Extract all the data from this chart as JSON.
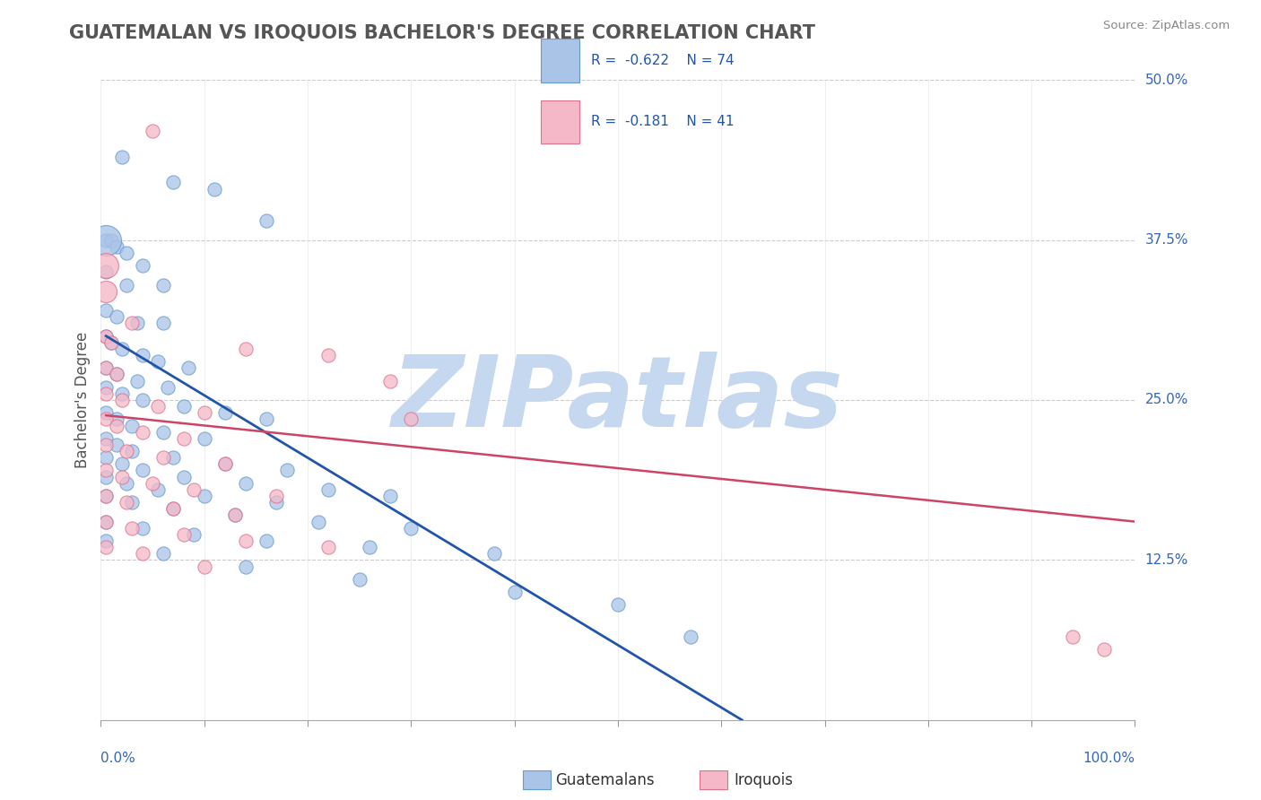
{
  "title": "GUATEMALAN VS IROQUOIS BACHELOR'S DEGREE CORRELATION CHART",
  "source_text": "Source: ZipAtlas.com",
  "ylabel": "Bachelor's Degree",
  "xlim": [
    0.0,
    1.0
  ],
  "ylim": [
    0.0,
    0.5
  ],
  "yticks": [
    0.0,
    0.125,
    0.25,
    0.375,
    0.5
  ],
  "ytick_labels": [
    "",
    "12.5%",
    "25.0%",
    "37.5%",
    "50.0%"
  ],
  "xticks": [
    0.0,
    0.1,
    0.2,
    0.3,
    0.4,
    0.5,
    0.6,
    0.7,
    0.8,
    0.9,
    1.0
  ],
  "blue_color": "#aac4e8",
  "pink_color": "#f5b8c8",
  "blue_edge_color": "#6699cc",
  "pink_edge_color": "#e0708a",
  "blue_line_color": "#2255aa",
  "pink_line_color": "#cc4466",
  "legend_R_blue": " -0.622",
  "legend_N_blue": "74",
  "legend_R_pink": " -0.181",
  "legend_N_pink": "41",
  "watermark": "ZIPatlas",
  "watermark_color": "#c5d8ef",
  "background_color": "#ffffff",
  "grid_color": "#cccccc",
  "title_color": "#555555",
  "axis_label_color": "#3366bb",
  "blue_line_x": [
    0.005,
    0.62
  ],
  "blue_line_y": [
    0.3,
    0.0
  ],
  "pink_line_x": [
    0.005,
    1.0
  ],
  "pink_line_y": [
    0.238,
    0.155
  ],
  "blue_points": [
    [
      0.02,
      0.44
    ],
    [
      0.07,
      0.42
    ],
    [
      0.11,
      0.415
    ],
    [
      0.16,
      0.39
    ],
    [
      0.005,
      0.375
    ],
    [
      0.01,
      0.375
    ],
    [
      0.015,
      0.37
    ],
    [
      0.025,
      0.365
    ],
    [
      0.04,
      0.355
    ],
    [
      0.005,
      0.35
    ],
    [
      0.025,
      0.34
    ],
    [
      0.06,
      0.34
    ],
    [
      0.005,
      0.32
    ],
    [
      0.015,
      0.315
    ],
    [
      0.035,
      0.31
    ],
    [
      0.06,
      0.31
    ],
    [
      0.005,
      0.3
    ],
    [
      0.01,
      0.295
    ],
    [
      0.02,
      0.29
    ],
    [
      0.04,
      0.285
    ],
    [
      0.055,
      0.28
    ],
    [
      0.085,
      0.275
    ],
    [
      0.005,
      0.275
    ],
    [
      0.015,
      0.27
    ],
    [
      0.035,
      0.265
    ],
    [
      0.065,
      0.26
    ],
    [
      0.005,
      0.26
    ],
    [
      0.02,
      0.255
    ],
    [
      0.04,
      0.25
    ],
    [
      0.08,
      0.245
    ],
    [
      0.12,
      0.24
    ],
    [
      0.16,
      0.235
    ],
    [
      0.005,
      0.24
    ],
    [
      0.015,
      0.235
    ],
    [
      0.03,
      0.23
    ],
    [
      0.06,
      0.225
    ],
    [
      0.1,
      0.22
    ],
    [
      0.005,
      0.22
    ],
    [
      0.015,
      0.215
    ],
    [
      0.03,
      0.21
    ],
    [
      0.07,
      0.205
    ],
    [
      0.12,
      0.2
    ],
    [
      0.18,
      0.195
    ],
    [
      0.005,
      0.205
    ],
    [
      0.02,
      0.2
    ],
    [
      0.04,
      0.195
    ],
    [
      0.08,
      0.19
    ],
    [
      0.14,
      0.185
    ],
    [
      0.22,
      0.18
    ],
    [
      0.28,
      0.175
    ],
    [
      0.005,
      0.19
    ],
    [
      0.025,
      0.185
    ],
    [
      0.055,
      0.18
    ],
    [
      0.1,
      0.175
    ],
    [
      0.17,
      0.17
    ],
    [
      0.005,
      0.175
    ],
    [
      0.03,
      0.17
    ],
    [
      0.07,
      0.165
    ],
    [
      0.13,
      0.16
    ],
    [
      0.21,
      0.155
    ],
    [
      0.3,
      0.15
    ],
    [
      0.005,
      0.155
    ],
    [
      0.04,
      0.15
    ],
    [
      0.09,
      0.145
    ],
    [
      0.16,
      0.14
    ],
    [
      0.26,
      0.135
    ],
    [
      0.38,
      0.13
    ],
    [
      0.005,
      0.14
    ],
    [
      0.06,
      0.13
    ],
    [
      0.14,
      0.12
    ],
    [
      0.25,
      0.11
    ],
    [
      0.4,
      0.1
    ],
    [
      0.5,
      0.09
    ],
    [
      0.57,
      0.065
    ]
  ],
  "pink_points": [
    [
      0.05,
      0.46
    ],
    [
      0.03,
      0.31
    ],
    [
      0.005,
      0.3
    ],
    [
      0.01,
      0.295
    ],
    [
      0.14,
      0.29
    ],
    [
      0.22,
      0.285
    ],
    [
      0.005,
      0.275
    ],
    [
      0.015,
      0.27
    ],
    [
      0.28,
      0.265
    ],
    [
      0.005,
      0.255
    ],
    [
      0.02,
      0.25
    ],
    [
      0.055,
      0.245
    ],
    [
      0.1,
      0.24
    ],
    [
      0.3,
      0.235
    ],
    [
      0.005,
      0.235
    ],
    [
      0.015,
      0.23
    ],
    [
      0.04,
      0.225
    ],
    [
      0.08,
      0.22
    ],
    [
      0.005,
      0.215
    ],
    [
      0.025,
      0.21
    ],
    [
      0.06,
      0.205
    ],
    [
      0.12,
      0.2
    ],
    [
      0.005,
      0.195
    ],
    [
      0.02,
      0.19
    ],
    [
      0.05,
      0.185
    ],
    [
      0.09,
      0.18
    ],
    [
      0.17,
      0.175
    ],
    [
      0.005,
      0.175
    ],
    [
      0.025,
      0.17
    ],
    [
      0.07,
      0.165
    ],
    [
      0.13,
      0.16
    ],
    [
      0.005,
      0.155
    ],
    [
      0.03,
      0.15
    ],
    [
      0.08,
      0.145
    ],
    [
      0.14,
      0.14
    ],
    [
      0.22,
      0.135
    ],
    [
      0.005,
      0.135
    ],
    [
      0.04,
      0.13
    ],
    [
      0.1,
      0.12
    ],
    [
      0.94,
      0.065
    ],
    [
      0.97,
      0.055
    ]
  ]
}
